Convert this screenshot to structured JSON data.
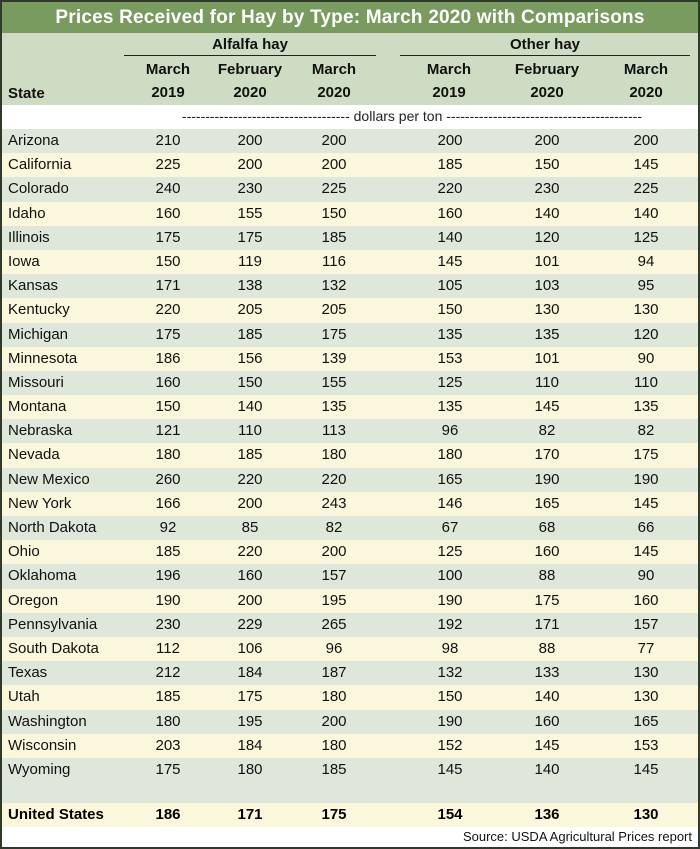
{
  "title": "Prices Received for Hay by Type: March 2020 with Comparisons",
  "header": {
    "state_label": "State",
    "groups": [
      "Alfalfa hay",
      "Other hay"
    ],
    "columns": [
      {
        "line1": "March",
        "line2": "2019"
      },
      {
        "line1": "February",
        "line2": "2020"
      },
      {
        "line1": "March",
        "line2": "2020"
      },
      {
        "line1": "March",
        "line2": "2019"
      },
      {
        "line1": "February",
        "line2": "2020"
      },
      {
        "line1": "March",
        "line2": "2020"
      }
    ],
    "units": "------------------------------------ dollars per ton ------------------------------------------"
  },
  "rows": [
    {
      "state": "Arizona",
      "values": [
        "210",
        "200",
        "200",
        "200",
        "200",
        "200"
      ]
    },
    {
      "state": "California",
      "values": [
        "225",
        "200",
        "200",
        "185",
        "150",
        "145"
      ]
    },
    {
      "state": "Colorado",
      "values": [
        "240",
        "230",
        "225",
        "220",
        "230",
        "225"
      ]
    },
    {
      "state": "Idaho",
      "values": [
        "160",
        "155",
        "150",
        "160",
        "140",
        "140"
      ]
    },
    {
      "state": "Illinois",
      "values": [
        "175",
        "175",
        "185",
        "140",
        "120",
        "125"
      ]
    },
    {
      "state": "Iowa",
      "values": [
        "150",
        "119",
        "116",
        "145",
        "101",
        "94"
      ]
    },
    {
      "state": "Kansas",
      "values": [
        "171",
        "138",
        "132",
        "105",
        "103",
        "95"
      ]
    },
    {
      "state": "Kentucky",
      "values": [
        "220",
        "205",
        "205",
        "150",
        "130",
        "130"
      ]
    },
    {
      "state": "Michigan",
      "values": [
        "175",
        "185",
        "175",
        "135",
        "135",
        "120"
      ]
    },
    {
      "state": "Minnesota",
      "values": [
        "186",
        "156",
        "139",
        "153",
        "101",
        "90"
      ]
    },
    {
      "state": "Missouri",
      "values": [
        "160",
        "150",
        "155",
        "125",
        "110",
        "110"
      ]
    },
    {
      "state": "Montana",
      "values": [
        "150",
        "140",
        "135",
        "135",
        "145",
        "135"
      ]
    },
    {
      "state": "Nebraska",
      "values": [
        "121",
        "110",
        "113",
        "96",
        "82",
        "82"
      ]
    },
    {
      "state": "Nevada",
      "values": [
        "180",
        "185",
        "180",
        "180",
        "170",
        "175"
      ]
    },
    {
      "state": "New Mexico",
      "values": [
        "260",
        "220",
        "220",
        "165",
        "190",
        "190"
      ]
    },
    {
      "state": "New York",
      "values": [
        "166",
        "200",
        "243",
        "146",
        "165",
        "145"
      ]
    },
    {
      "state": "North Dakota",
      "values": [
        "92",
        "85",
        "82",
        "67",
        "68",
        "66"
      ]
    },
    {
      "state": "Ohio",
      "values": [
        "185",
        "220",
        "200",
        "125",
        "160",
        "145"
      ]
    },
    {
      "state": "Oklahoma",
      "values": [
        "196",
        "160",
        "157",
        "100",
        "88",
        "90"
      ]
    },
    {
      "state": "Oregon",
      "values": [
        "190",
        "200",
        "195",
        "190",
        "175",
        "160"
      ]
    },
    {
      "state": "Pennsylvania",
      "values": [
        "230",
        "229",
        "265",
        "192",
        "171",
        "157"
      ]
    },
    {
      "state": "South Dakota",
      "values": [
        "112",
        "106",
        "96",
        "98",
        "88",
        "77"
      ]
    },
    {
      "state": "Texas",
      "values": [
        "212",
        "184",
        "187",
        "132",
        "133",
        "130"
      ]
    },
    {
      "state": "Utah",
      "values": [
        "185",
        "175",
        "180",
        "150",
        "140",
        "130"
      ]
    },
    {
      "state": "Washington",
      "values": [
        "180",
        "195",
        "200",
        "190",
        "160",
        "165"
      ]
    },
    {
      "state": "Wisconsin",
      "values": [
        "203",
        "184",
        "180",
        "152",
        "145",
        "153"
      ]
    },
    {
      "state": "Wyoming",
      "values": [
        "175",
        "180",
        "185",
        "145",
        "140",
        "145"
      ]
    }
  ],
  "total": {
    "state": "United States",
    "values": [
      "186",
      "171",
      "175",
      "154",
      "136",
      "130"
    ]
  },
  "source": "Source: USDA Agricultural Prices report",
  "colors": {
    "title_bg": "#7a9b5f",
    "header_bg": "#cfdcc4",
    "row_shade": "#dfe6da",
    "row_cream": "#fbf7dc"
  }
}
